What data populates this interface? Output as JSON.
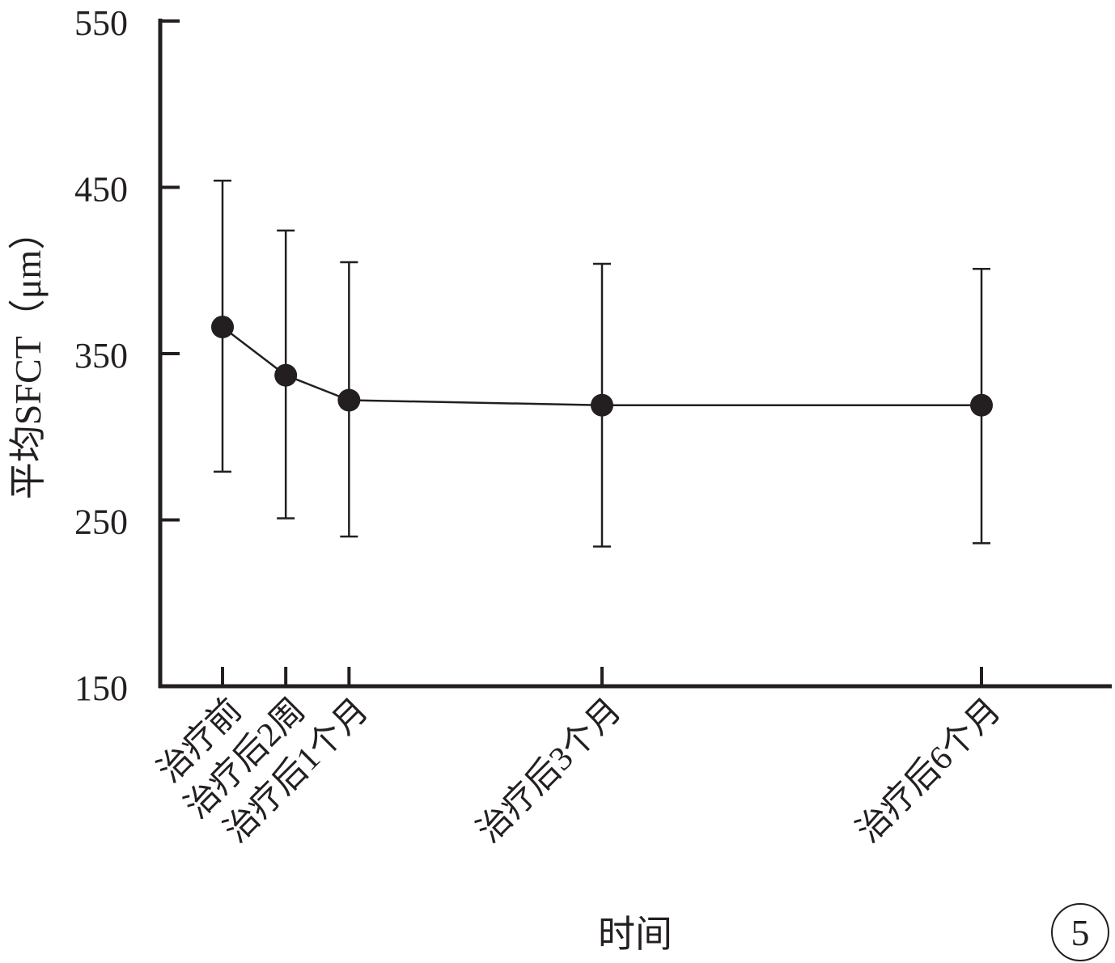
{
  "chart_data": {
    "type": "line",
    "title": "",
    "xlabel": "时间",
    "ylabel": "平均SFCT（μm）",
    "ylim": [
      150,
      550
    ],
    "yticks": [
      150,
      250,
      350,
      450,
      550
    ],
    "categories": [
      "治疗前",
      "治疗后2周",
      "治疗后1个月",
      "治疗后3个月",
      "治疗后6个月"
    ],
    "x_months": [
      0,
      0.5,
      1,
      3,
      6
    ],
    "series": [
      {
        "values": [
          366,
          337,
          322,
          319,
          319
        ],
        "error_low": [
          279,
          251,
          240,
          234,
          236
        ],
        "error_high": [
          454,
          424,
          405,
          404,
          401
        ]
      }
    ],
    "grid": false,
    "legend": "none",
    "color": "#231f20"
  },
  "panel_label": "5"
}
